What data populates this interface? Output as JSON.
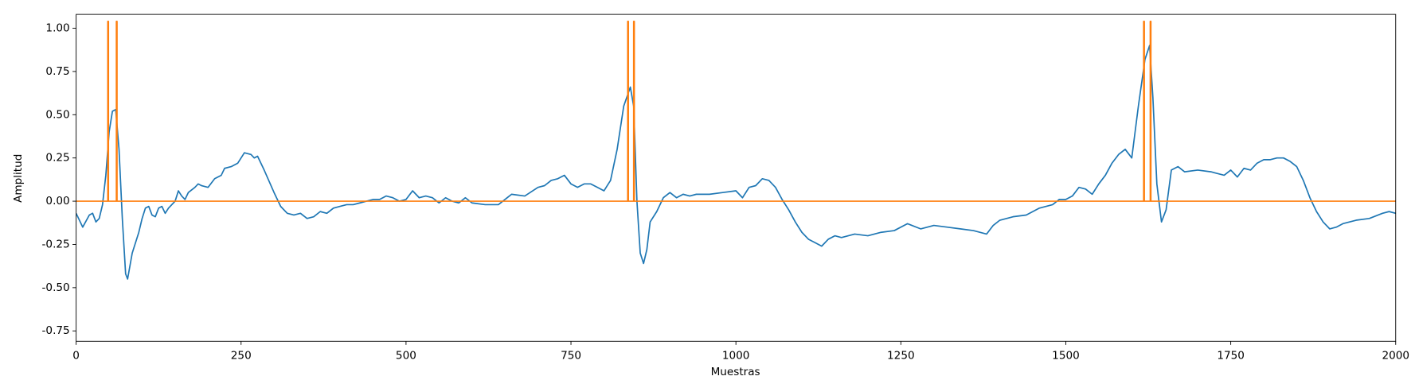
{
  "chart_data": {
    "type": "line",
    "xlabel": "Muestras",
    "ylabel": "Amplitud",
    "xlim": [
      0,
      2000
    ],
    "ylim": [
      -0.81,
      1.08
    ],
    "xticks": [
      0,
      250,
      500,
      750,
      1000,
      1250,
      1500,
      1750,
      2000
    ],
    "yticks": [
      {
        "value": -0.75,
        "label": "-0.75"
      },
      {
        "value": -0.5,
        "label": "-0.50"
      },
      {
        "value": -0.25,
        "label": "-0.25"
      },
      {
        "value": 0,
        "label": "0.00"
      },
      {
        "value": 0.25,
        "label": "0.25"
      },
      {
        "value": 0.5,
        "label": "0.50"
      },
      {
        "value": 0.75,
        "label": "0.75"
      },
      {
        "value": 1,
        "label": "1.00"
      }
    ],
    "series": [
      {
        "color": "#1f77b4",
        "x": [
          0,
          10,
          20,
          25,
          30,
          35,
          40,
          45,
          50,
          55,
          60,
          65,
          70,
          75,
          78,
          85,
          95,
          100,
          105,
          110,
          115,
          120,
          125,
          130,
          135,
          140,
          150,
          155,
          160,
          165,
          170,
          180,
          185,
          190,
          200,
          210,
          220,
          225,
          235,
          245,
          255,
          265,
          270,
          275,
          285,
          300,
          310,
          320,
          330,
          340,
          350,
          360,
          370,
          380,
          390,
          400,
          410,
          420,
          430,
          440,
          450,
          460,
          470,
          480,
          490,
          500,
          510,
          520,
          530,
          540,
          550,
          560,
          570,
          580,
          590,
          600,
          620,
          640,
          660,
          680,
          700,
          710,
          720,
          730,
          740,
          750,
          760,
          770,
          780,
          790,
          800,
          810,
          820,
          830,
          840,
          845,
          850,
          855,
          860,
          865,
          870,
          880,
          890,
          900,
          910,
          920,
          930,
          940,
          960,
          980,
          1000,
          1010,
          1020,
          1030,
          1040,
          1050,
          1060,
          1070,
          1080,
          1090,
          1100,
          1110,
          1120,
          1130,
          1140,
          1150,
          1160,
          1180,
          1200,
          1220,
          1240,
          1260,
          1280,
          1300,
          1320,
          1340,
          1360,
          1380,
          1390,
          1400,
          1420,
          1440,
          1460,
          1480,
          1490,
          1500,
          1510,
          1520,
          1530,
          1540,
          1550,
          1560,
          1570,
          1580,
          1590,
          1600,
          1610,
          1620,
          1627,
          1632,
          1638,
          1645,
          1652,
          1660,
          1670,
          1680,
          1700,
          1720,
          1740,
          1750,
          1760,
          1770,
          1780,
          1790,
          1800,
          1810,
          1820,
          1830,
          1840,
          1850,
          1860,
          1870,
          1880,
          1890,
          1900,
          1910,
          1920,
          1940,
          1960,
          1980,
          1990,
          2000
        ],
        "values": [
          -0.07,
          -0.15,
          -0.08,
          -0.07,
          -0.12,
          -0.1,
          -0.02,
          0.15,
          0.4,
          0.52,
          0.53,
          0.3,
          -0.1,
          -0.42,
          -0.45,
          -0.3,
          -0.18,
          -0.1,
          -0.04,
          -0.03,
          -0.08,
          -0.09,
          -0.04,
          -0.03,
          -0.07,
          -0.04,
          0,
          0.06,
          0.03,
          0.01,
          0.05,
          0.08,
          0.1,
          0.09,
          0.08,
          0.13,
          0.15,
          0.19,
          0.2,
          0.22,
          0.28,
          0.27,
          0.25,
          0.26,
          0.18,
          0.05,
          -0.03,
          -0.07,
          -0.08,
          -0.07,
          -0.1,
          -0.09,
          -0.06,
          -0.07,
          -0.04,
          -0.03,
          -0.02,
          -0.02,
          -0.01,
          0,
          0.01,
          0.01,
          0.03,
          0.02,
          0,
          0.01,
          0.06,
          0.02,
          0.03,
          0.02,
          -0.01,
          0.02,
          0,
          -0.01,
          0.02,
          -0.01,
          -0.02,
          -0.02,
          0.04,
          0.03,
          0.08,
          0.09,
          0.12,
          0.13,
          0.15,
          0.1,
          0.08,
          0.1,
          0.1,
          0.08,
          0.06,
          0.12,
          0.3,
          0.55,
          0.66,
          0.55,
          0,
          -0.3,
          -0.36,
          -0.28,
          -0.12,
          -0.06,
          0.02,
          0.05,
          0.02,
          0.04,
          0.03,
          0.04,
          0.04,
          0.05,
          0.06,
          0.02,
          0.08,
          0.09,
          0.13,
          0.12,
          0.08,
          0.01,
          -0.05,
          -0.12,
          -0.18,
          -0.22,
          -0.24,
          -0.26,
          -0.22,
          -0.2,
          -0.21,
          -0.19,
          -0.2,
          -0.18,
          -0.17,
          -0.13,
          -0.16,
          -0.14,
          -0.15,
          -0.16,
          -0.17,
          -0.19,
          -0.14,
          -0.11,
          -0.09,
          -0.08,
          -0.04,
          -0.02,
          0.01,
          0.01,
          0.03,
          0.08,
          0.07,
          0.04,
          0.1,
          0.15,
          0.22,
          0.27,
          0.3,
          0.25,
          0.55,
          0.82,
          0.9,
          0.6,
          0.1,
          -0.12,
          -0.05,
          0.18,
          0.2,
          0.17,
          0.18,
          0.17,
          0.15,
          0.18,
          0.14,
          0.19,
          0.18,
          0.22,
          0.24,
          0.24,
          0.25,
          0.25,
          0.23,
          0.2,
          0.12,
          0.02,
          -0.06,
          -0.12,
          -0.16,
          -0.15,
          -0.13,
          -0.11,
          -0.1,
          -0.07,
          -0.06,
          -0.07
        ]
      },
      {
        "color": "#ff7f0e",
        "x": [
          0,
          48,
          48,
          49,
          49,
          61,
          61,
          62,
          62,
          836,
          836,
          837,
          837,
          845,
          845,
          846,
          846,
          1618,
          1618,
          1619,
          1619,
          1628,
          1628,
          1629,
          1629,
          2000
        ],
        "values": [
          0,
          0,
          1.04,
          1.04,
          0,
          0,
          1.04,
          1.04,
          0,
          0,
          1.04,
          1.04,
          0,
          0,
          1.04,
          1.04,
          0,
          0,
          1.04,
          1.04,
          0,
          0,
          1.04,
          1.04,
          0,
          0
        ]
      }
    ]
  }
}
